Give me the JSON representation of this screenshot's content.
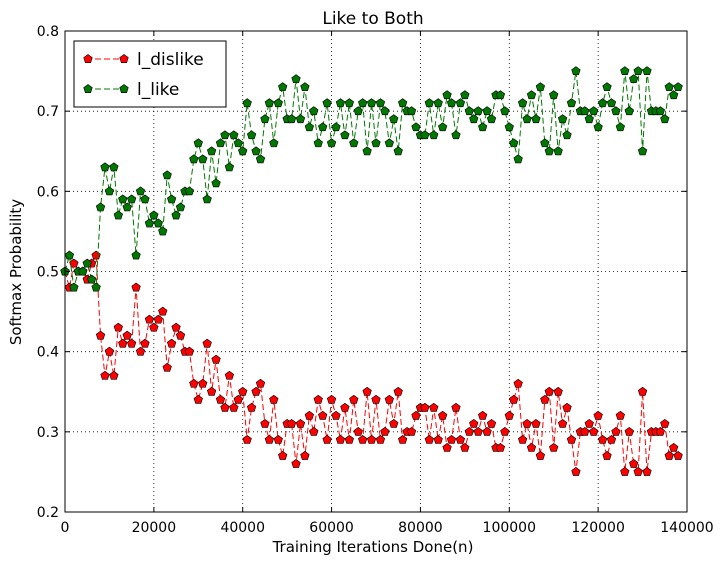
{
  "chart_data": {
    "type": "line",
    "title": "Like to Both",
    "xlabel": "Training Iterations Done(n)",
    "ylabel": "Softmax Probability",
    "xlim": [
      0,
      140000
    ],
    "ylim": [
      0.2,
      0.8
    ],
    "xticks": [
      0,
      20000,
      40000,
      60000,
      80000,
      100000,
      120000,
      140000
    ],
    "xtick_labels": [
      "0",
      "20000",
      "40000",
      "60000",
      "80000",
      "100000",
      "120000",
      "140000"
    ],
    "yticks": [
      0.2,
      0.3,
      0.4,
      0.5,
      0.6,
      0.7,
      0.8
    ],
    "ytick_labels": [
      "0.2",
      "0.3",
      "0.4",
      "0.5",
      "0.6",
      "0.7",
      "0.8"
    ],
    "grid": true,
    "legend_position": "top-left",
    "x": [
      0,
      1000,
      2000,
      3000,
      4000,
      5000,
      6000,
      7000,
      8000,
      9000,
      10000,
      11000,
      12000,
      13000,
      14000,
      15000,
      16000,
      17000,
      18000,
      19000,
      20000,
      21000,
      22000,
      23000,
      24000,
      25000,
      26000,
      27000,
      28000,
      29000,
      30000,
      31000,
      32000,
      33000,
      34000,
      35000,
      36000,
      37000,
      38000,
      39000,
      40000,
      41000,
      42000,
      43000,
      44000,
      45000,
      46000,
      47000,
      48000,
      49000,
      50000,
      51000,
      52000,
      53000,
      54000,
      55000,
      56000,
      57000,
      58000,
      59000,
      60000,
      61000,
      62000,
      63000,
      64000,
      65000,
      66000,
      67000,
      68000,
      69000,
      70000,
      71000,
      72000,
      73000,
      74000,
      75000,
      76000,
      77000,
      78000,
      79000,
      80000,
      81000,
      82000,
      83000,
      84000,
      85000,
      86000,
      87000,
      88000,
      89000,
      90000,
      91000,
      92000,
      93000,
      94000,
      95000,
      96000,
      97000,
      98000,
      99000,
      100000,
      101000,
      102000,
      103000,
      104000,
      105000,
      106000,
      107000,
      108000,
      109000,
      110000,
      111000,
      112000,
      113000,
      114000,
      115000,
      116000,
      117000,
      118000,
      119000,
      120000,
      121000,
      122000,
      123000,
      124000,
      125000,
      126000,
      127000,
      128000,
      129000,
      130000,
      131000,
      132000,
      133000,
      134000,
      135000,
      136000,
      137000,
      138000
    ],
    "series": [
      {
        "name": "l_dislike",
        "color": "#ff0000",
        "values": [
          0.5,
          0.48,
          0.51,
          0.5,
          0.5,
          0.49,
          0.51,
          0.52,
          0.42,
          0.37,
          0.4,
          0.37,
          0.43,
          0.41,
          0.42,
          0.41,
          0.48,
          0.4,
          0.41,
          0.44,
          0.43,
          0.44,
          0.45,
          0.38,
          0.41,
          0.43,
          0.42,
          0.4,
          0.4,
          0.36,
          0.34,
          0.36,
          0.41,
          0.35,
          0.39,
          0.34,
          0.33,
          0.37,
          0.33,
          0.34,
          0.35,
          0.29,
          0.33,
          0.35,
          0.36,
          0.31,
          0.29,
          0.34,
          0.29,
          0.27,
          0.31,
          0.31,
          0.26,
          0.31,
          0.27,
          0.32,
          0.3,
          0.34,
          0.32,
          0.29,
          0.34,
          0.32,
          0.29,
          0.33,
          0.29,
          0.34,
          0.3,
          0.29,
          0.35,
          0.29,
          0.34,
          0.29,
          0.3,
          0.34,
          0.31,
          0.35,
          0.29,
          0.3,
          0.3,
          0.32,
          0.33,
          0.33,
          0.29,
          0.33,
          0.29,
          0.32,
          0.28,
          0.29,
          0.33,
          0.29,
          0.28,
          0.3,
          0.31,
          0.3,
          0.32,
          0.3,
          0.31,
          0.28,
          0.28,
          0.3,
          0.32,
          0.34,
          0.36,
          0.29,
          0.31,
          0.28,
          0.31,
          0.27,
          0.34,
          0.35,
          0.28,
          0.35,
          0.31,
          0.33,
          0.29,
          0.25,
          0.3,
          0.3,
          0.31,
          0.3,
          0.32,
          0.29,
          0.27,
          0.29,
          0.3,
          0.32,
          0.25,
          0.3,
          0.26,
          0.25,
          0.35,
          0.25,
          0.3,
          0.3,
          0.3,
          0.31,
          0.27,
          0.28,
          0.27
        ]
      },
      {
        "name": "l_like",
        "color": "#007700",
        "values": [
          0.5,
          0.52,
          0.48,
          0.5,
          0.5,
          0.51,
          0.49,
          0.48,
          0.58,
          0.63,
          0.6,
          0.63,
          0.57,
          0.59,
          0.58,
          0.59,
          0.52,
          0.6,
          0.59,
          0.56,
          0.57,
          0.56,
          0.55,
          0.62,
          0.59,
          0.57,
          0.58,
          0.6,
          0.6,
          0.64,
          0.66,
          0.64,
          0.59,
          0.65,
          0.61,
          0.66,
          0.67,
          0.63,
          0.67,
          0.66,
          0.65,
          0.71,
          0.67,
          0.65,
          0.64,
          0.69,
          0.71,
          0.66,
          0.71,
          0.73,
          0.69,
          0.69,
          0.74,
          0.69,
          0.73,
          0.68,
          0.7,
          0.66,
          0.68,
          0.71,
          0.66,
          0.68,
          0.71,
          0.67,
          0.71,
          0.66,
          0.7,
          0.71,
          0.65,
          0.71,
          0.66,
          0.71,
          0.7,
          0.66,
          0.69,
          0.65,
          0.71,
          0.7,
          0.7,
          0.68,
          0.67,
          0.67,
          0.71,
          0.67,
          0.71,
          0.68,
          0.72,
          0.71,
          0.67,
          0.71,
          0.72,
          0.7,
          0.69,
          0.7,
          0.68,
          0.7,
          0.69,
          0.72,
          0.72,
          0.7,
          0.68,
          0.66,
          0.64,
          0.71,
          0.69,
          0.72,
          0.69,
          0.73,
          0.66,
          0.65,
          0.72,
          0.65,
          0.69,
          0.67,
          0.71,
          0.75,
          0.7,
          0.7,
          0.69,
          0.7,
          0.68,
          0.71,
          0.73,
          0.71,
          0.7,
          0.68,
          0.75,
          0.7,
          0.74,
          0.75,
          0.65,
          0.75,
          0.7,
          0.7,
          0.7,
          0.69,
          0.73,
          0.72,
          0.73
        ]
      }
    ]
  }
}
